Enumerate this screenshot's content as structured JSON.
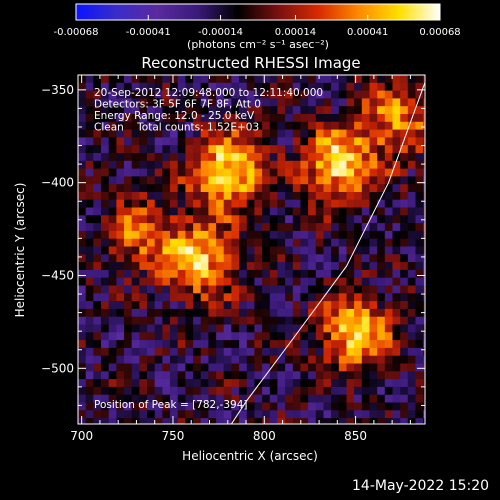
{
  "chart_data": {
    "type": "heatmap",
    "title": "Reconstructed RHESSI Image",
    "xlabel": "Heliocentric X (arcsec)",
    "ylabel": "Heliocentric Y (arcsec)",
    "xlim": [
      698,
      888
    ],
    "ylim": [
      -530,
      -342
    ],
    "xticks": [
      700,
      750,
      800,
      850
    ],
    "yticks": [
      -350,
      -400,
      -450,
      -500
    ],
    "colorbar": {
      "ticks": [
        -0.00068,
        -0.00041,
        -0.00014,
        0.00014,
        0.00041,
        0.00068
      ],
      "tick_labels": [
        "-0.00068",
        "-0.00041",
        "-0.00014",
        "0.00014",
        "0.00041",
        "0.00068"
      ],
      "units_label": "(photons cm⁻² s⁻¹ asec⁻²)",
      "range": [
        -0.00068,
        0.00068
      ]
    },
    "annotations": [
      "20-Sep-2012 12:09:48.000 to 12:11:40.000",
      "Detectors: 3F 5F 6F 7F 8F, Att 0",
      "Energy Range: 12.0 - 25.0 keV",
      "Clean    Total counts: 1.52E+03"
    ],
    "peak_label": "Position of Peak = [782,-394]",
    "peak": {
      "x": 782,
      "y": -394
    },
    "bright_sources": [
      {
        "x": 778,
        "y": -392,
        "level": 1.0
      },
      {
        "x": 838,
        "y": -388,
        "level": 0.95
      },
      {
        "x": 762,
        "y": -440,
        "level": 0.85
      },
      {
        "x": 848,
        "y": -478,
        "level": 0.9
      },
      {
        "x": 730,
        "y": -425,
        "level": 0.6
      },
      {
        "x": 870,
        "y": -365,
        "level": 0.65
      }
    ],
    "limb_curve": [
      [
        888,
        -346
      ],
      [
        868,
        -400
      ],
      [
        845,
        -445
      ],
      [
        815,
        -485
      ],
      [
        790,
        -518
      ],
      [
        782,
        -530
      ]
    ],
    "colormap": [
      "#0a14ff",
      "#3a2cc8",
      "#5a2aa0",
      "#3a1a7a",
      "#000000",
      "#7a1010",
      "#d82a00",
      "#ff8a00",
      "#ffe000",
      "#ffffff"
    ]
  },
  "footer": {
    "timestamp": "14-May-2022 15:20"
  }
}
